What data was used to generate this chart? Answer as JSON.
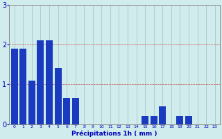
{
  "categories": [
    0,
    1,
    2,
    3,
    4,
    5,
    6,
    7,
    8,
    9,
    10,
    11,
    12,
    13,
    14,
    15,
    16,
    17,
    18,
    19,
    20,
    21,
    22,
    23
  ],
  "values": [
    1.9,
    1.9,
    1.1,
    2.1,
    2.1,
    1.4,
    0.65,
    0.65,
    0.0,
    0.0,
    0.0,
    0.0,
    0.0,
    0.0,
    0.0,
    0.2,
    0.2,
    0.45,
    0.0,
    0.2,
    0.2,
    0.0,
    0.0,
    0.0
  ],
  "bar_color": "#1a3bbf",
  "background_color": "#d0ecec",
  "grid_color": "#a8c8c8",
  "xlabel": "Précipitations 1h ( mm )",
  "xlabel_color": "#0000bb",
  "tick_color": "#0000bb",
  "ylim": [
    0,
    3
  ],
  "yticks": [
    0,
    1,
    2,
    3
  ],
  "spine_color": "#888888"
}
